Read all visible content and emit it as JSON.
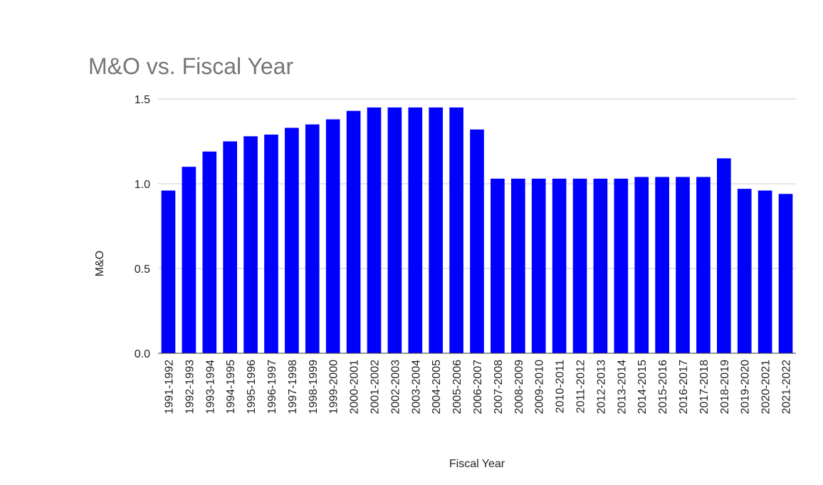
{
  "chart_data": {
    "type": "bar",
    "title": "M&O vs. Fiscal Year",
    "xlabel": "Fiscal Year",
    "ylabel": "M&O",
    "ylim": [
      0,
      1.5
    ],
    "yticks": [
      "0.0",
      "0.5",
      "1.0",
      "1.5"
    ],
    "grid": true,
    "legend": "none",
    "bar_color": "#0000ff",
    "categories": [
      "1991-1992",
      "1992-1993",
      "1993-1994",
      "1994-1995",
      "1995-1996",
      "1996-1997",
      "1997-1998",
      "1998-1999",
      "1999-2000",
      "2000-2001",
      "2001-2002",
      "2002-2003",
      "2003-2004",
      "2004-2005",
      "2005-2006",
      "2006-2007",
      "2007-2008",
      "2008-2009",
      "2009-2010",
      "2010-2011",
      "2011-2012",
      "2012-2013",
      "2013-2014",
      "2014-2015",
      "2015-2016",
      "2016-2017",
      "2017-2018",
      "2018-2019",
      "2019-2020",
      "2020-2021",
      "2021-2022"
    ],
    "values": [
      0.96,
      1.1,
      1.19,
      1.25,
      1.28,
      1.29,
      1.33,
      1.35,
      1.38,
      1.43,
      1.45,
      1.45,
      1.45,
      1.45,
      1.45,
      1.32,
      1.03,
      1.03,
      1.03,
      1.03,
      1.03,
      1.03,
      1.03,
      1.04,
      1.04,
      1.04,
      1.04,
      1.15,
      0.97,
      0.96,
      0.94
    ]
  }
}
